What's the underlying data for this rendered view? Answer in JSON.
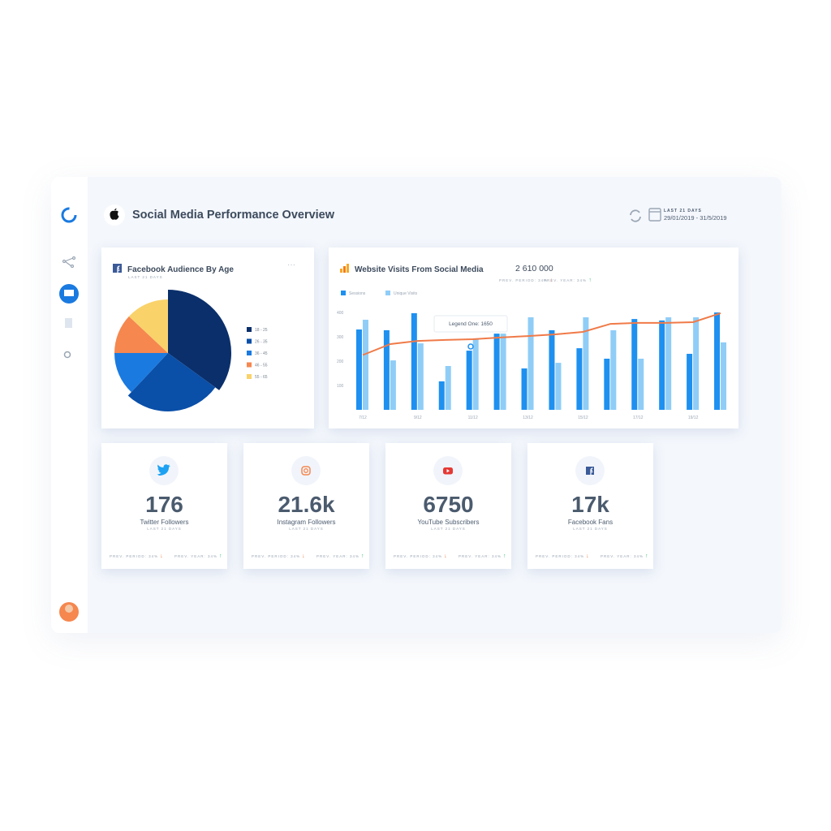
{
  "header": {
    "title": "Social Media Performance Overview",
    "period": "LAST 21 DAYS",
    "dates": "29/01/2019 - 31/5/2019"
  },
  "chart_data": [
    {
      "type": "pie",
      "title": "Facebook Audience By Age",
      "subtitle": "LAST 21 DAYS",
      "categories": [
        "18 - 25",
        "26 - 35",
        "36 - 45",
        "46 - 55",
        "55 - 65"
      ],
      "values": [
        35,
        27,
        13,
        12,
        13
      ],
      "colors": [
        "#0a2f6b",
        "#0a4fa8",
        "#1a7ae0",
        "#f5874f",
        "#f9d26a"
      ]
    },
    {
      "type": "bar",
      "title": "Website Visits From Social Media",
      "total": "2 610 000",
      "prev_period": {
        "label": "PREV. PERIOD:",
        "value": "34%"
      },
      "prev_year": {
        "label": "PREV. YEAR:",
        "value": "34%"
      },
      "categories": [
        "7/12",
        null,
        "9/12",
        null,
        "11/12",
        null,
        "13/12",
        null,
        "15/12",
        null,
        "17/12",
        null,
        "19/12",
        null
      ],
      "series": [
        {
          "name": "Sessions",
          "color": "#1e90f0",
          "values": [
            330,
            327,
            397,
            117,
            243,
            313,
            170,
            327,
            253,
            210,
            373,
            367,
            230,
            400
          ]
        },
        {
          "name": "Unique Visits",
          "color": "#8fcdf7",
          "values": [
            370,
            203,
            273,
            180,
            293,
            313,
            380,
            193,
            380,
            327,
            210,
            380,
            380,
            277
          ]
        },
        {
          "type": "line",
          "color": "#f07a48",
          "values": [
            225,
            270,
            283,
            287,
            290,
            297,
            303,
            310,
            320,
            353,
            357,
            357,
            360,
            397
          ]
        }
      ],
      "ylim": [
        0,
        400
      ],
      "yticks": [
        100,
        200,
        300,
        400
      ],
      "grid": false,
      "annotation": "Legend One: 1650"
    }
  ],
  "cards": [
    {
      "value": 176,
      "label": "Twitter Followers",
      "period": "LAST 21 DAYS",
      "prev_period": "PREV. PERIOD: 34%",
      "prev_year": "PREV. YEAR: 34%"
    },
    {
      "value": "21.6k",
      "label": "Instagram Followers",
      "period": "LAST 21 DAYS",
      "prev_period": "PREV. PERIOD: 34%",
      "prev_year": "PREV. YEAR: 34%"
    },
    {
      "value": 6750,
      "label": "YouTube Subscribers",
      "period": "LAST 21 DAYS",
      "prev_period": "PREV. PERIOD: 34%",
      "prev_year": "PREV. YEAR: 34%"
    },
    {
      "value": "17k",
      "label": "Facebook Fans",
      "period": "LAST 21 DAYS",
      "prev_period": "PREV. PERIOD: 34%",
      "prev_year": "PREV. YEAR: 34%"
    }
  ]
}
